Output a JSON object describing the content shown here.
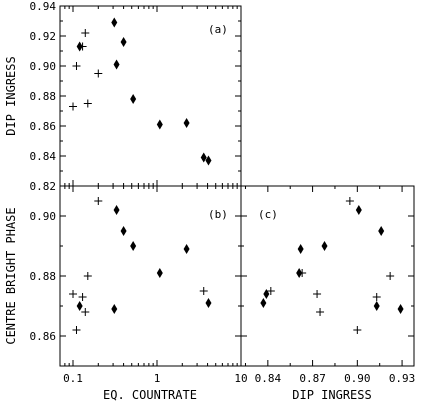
{
  "chart_data": [
    {
      "type": "scatter",
      "panel_label": "(a)",
      "xlabel": "",
      "ylabel": "DIP INGRESS",
      "xscale": "log",
      "xlim": [
        0.07,
        10
      ],
      "ylim": [
        0.82,
        0.94
      ],
      "xticks": [
        0.1,
        1,
        10
      ],
      "xticklabels": [],
      "yticks": [
        0.82,
        0.84,
        0.86,
        0.88,
        0.9,
        0.92,
        0.94
      ],
      "yticklabels": [
        "0.82",
        "0.84",
        "0.86",
        "0.88",
        "0.90",
        "0.92",
        "0.94"
      ],
      "series": [
        {
          "marker": "diamond",
          "x": [
            0.12,
            0.31,
            0.33,
            0.4,
            0.52,
            1.08,
            2.25,
            3.6,
            4.1
          ],
          "y": [
            0.913,
            0.929,
            0.901,
            0.916,
            0.878,
            0.861,
            0.862,
            0.839,
            0.837
          ]
        },
        {
          "marker": "plus",
          "x": [
            0.1,
            0.11,
            0.13,
            0.14,
            0.15,
            0.2
          ],
          "y": [
            0.873,
            0.9,
            0.913,
            0.922,
            0.875,
            0.895
          ]
        }
      ]
    },
    {
      "type": "scatter",
      "panel_label": "(b)",
      "xlabel": "EQ. COUNTRATE",
      "ylabel": "CENTRE BRIGHT PHASE",
      "xscale": "log",
      "xlim": [
        0.07,
        10
      ],
      "ylim": [
        0.85,
        0.91
      ],
      "xticks": [
        0.1,
        1,
        10
      ],
      "xticklabels": [
        "0.1",
        "1",
        "10"
      ],
      "yticks": [
        0.86,
        0.88,
        0.9
      ],
      "yticklabels": [
        "0.86",
        "0.88",
        "0.90"
      ],
      "series": [
        {
          "marker": "diamond",
          "x": [
            0.12,
            0.31,
            0.33,
            0.4,
            0.52,
            1.08,
            2.25,
            4.1
          ],
          "y": [
            0.87,
            0.869,
            0.902,
            0.895,
            0.89,
            0.881,
            0.889,
            0.871
          ]
        },
        {
          "marker": "plus",
          "x": [
            0.1,
            0.11,
            0.13,
            0.14,
            0.15,
            0.2,
            3.6
          ],
          "y": [
            0.874,
            0.862,
            0.873,
            0.868,
            0.88,
            0.905,
            0.875
          ]
        }
      ]
    },
    {
      "type": "scatter",
      "panel_label": "(c)",
      "xlabel": "DIP INGRESS",
      "ylabel": "",
      "xscale": "linear",
      "xlim": [
        0.822,
        0.938
      ],
      "ylim": [
        0.85,
        0.91
      ],
      "xticks": [
        0.84,
        0.87,
        0.9,
        0.93
      ],
      "xticklabels": [
        "0.84",
        "0.87",
        "0.90",
        "0.93"
      ],
      "yticks": [
        0.86,
        0.88,
        0.9
      ],
      "yticklabels": [],
      "series": [
        {
          "marker": "diamond",
          "x": [
            0.837,
            0.839,
            0.862,
            0.861,
            0.878,
            0.901,
            0.916,
            0.913,
            0.929
          ],
          "y": [
            0.871,
            0.874,
            0.889,
            0.881,
            0.89,
            0.902,
            0.895,
            0.87,
            0.869
          ]
        },
        {
          "marker": "plus",
          "x": [
            0.9,
            0.873,
            0.913,
            0.875,
            0.922,
            0.895,
            0.842,
            0.863
          ],
          "y": [
            0.862,
            0.874,
            0.873,
            0.868,
            0.88,
            0.905,
            0.875,
            0.881
          ]
        }
      ]
    }
  ]
}
